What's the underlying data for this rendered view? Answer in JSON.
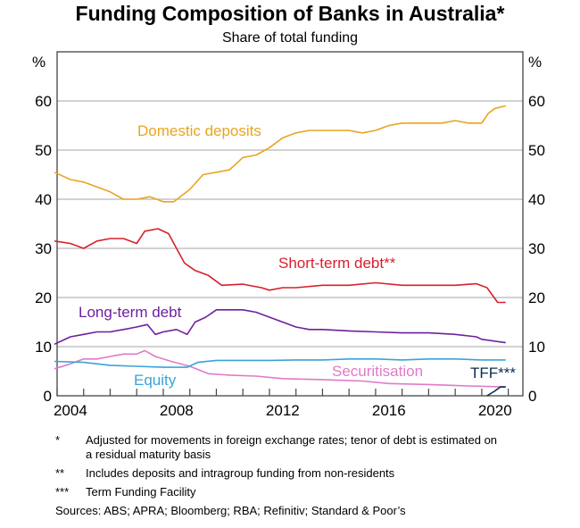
{
  "chart_data": {
    "type": "line",
    "title": "Funding Composition of Banks in Australia*",
    "subtitle": "Share of total funding",
    "ylabel_left": "%",
    "ylabel_right": "%",
    "ylim": [
      0,
      70
    ],
    "xlim": [
      2004,
      2021.55
    ],
    "yticks": [
      0,
      10,
      20,
      30,
      40,
      50,
      60
    ],
    "xtick_labels": [
      "2004",
      "2008",
      "2012",
      "2016",
      "2020"
    ],
    "grid": true,
    "series": [
      {
        "name": "Domestic deposits",
        "color": "#e8a520",
        "x": [
          2003.9,
          2004.5,
          2005.0,
          2005.5,
          2006.0,
          2006.5,
          2007.0,
          2007.5,
          2008.0,
          2008.4,
          2009.0,
          2009.5,
          2010.0,
          2010.5,
          2011.0,
          2011.5,
          2012.0,
          2012.5,
          2013.0,
          2013.5,
          2014.0,
          2014.5,
          2015.0,
          2015.5,
          2016.0,
          2016.5,
          2017.0,
          2017.5,
          2018.0,
          2018.5,
          2019.0,
          2019.5,
          2020.0,
          2020.25,
          2020.5,
          2020.9
        ],
        "y": [
          45.5,
          44,
          43.5,
          42.5,
          41.5,
          40,
          40,
          40.5,
          39.5,
          39.5,
          42,
          45,
          45.5,
          46,
          48.5,
          49,
          50.5,
          52.5,
          53.5,
          54,
          54,
          54,
          54,
          53.5,
          54,
          55,
          55.5,
          55.5,
          55.5,
          55.5,
          56,
          55.5,
          55.5,
          57.5,
          58.5,
          59
        ]
      },
      {
        "name": "Short-term debt**",
        "color": "#d7202d",
        "x": [
          2003.9,
          2004.5,
          2005.0,
          2005.5,
          2006.0,
          2006.5,
          2007.0,
          2007.3,
          2007.8,
          2008.2,
          2008.5,
          2008.8,
          2009.2,
          2009.7,
          2010.2,
          2011.0,
          2011.7,
          2012.0,
          2012.5,
          2013.0,
          2014.0,
          2015.0,
          2016.0,
          2017.0,
          2018.0,
          2019.0,
          2019.8,
          2020.2,
          2020.6,
          2020.9
        ],
        "y": [
          31.5,
          31,
          30,
          31.5,
          32,
          32,
          31,
          33.5,
          34,
          33,
          30,
          27,
          25.5,
          24.5,
          22.5,
          22.7,
          22,
          21.5,
          22,
          22,
          22.5,
          22.5,
          23,
          22.5,
          22.5,
          22.5,
          22.8,
          22,
          19,
          19
        ]
      },
      {
        "name": "Long-term debt",
        "color": "#6e1f9e",
        "x": [
          2003.9,
          2004.5,
          2005.0,
          2005.5,
          2006.0,
          2006.5,
          2007.0,
          2007.4,
          2007.7,
          2008.0,
          2008.5,
          2008.9,
          2009.2,
          2009.6,
          2010.0,
          2010.5,
          2011.0,
          2011.5,
          2012.0,
          2012.5,
          2013.0,
          2013.5,
          2014.0,
          2015.0,
          2016.0,
          2017.0,
          2018.0,
          2019.0,
          2019.8,
          2020.0,
          2020.9
        ],
        "y": [
          10.5,
          12,
          12.5,
          13,
          13,
          13.5,
          14,
          14.5,
          12.5,
          13,
          13.5,
          12.5,
          15,
          16,
          17.5,
          17.5,
          17.5,
          17,
          16,
          15,
          14,
          13.5,
          13.5,
          13.2,
          13,
          12.8,
          12.8,
          12.5,
          12,
          11.5,
          10.8
        ]
      },
      {
        "name": "Securitisation",
        "color": "#e07ac8",
        "x": [
          2003.9,
          2004.5,
          2005.0,
          2005.5,
          2006.0,
          2006.5,
          2007.0,
          2007.3,
          2007.7,
          2008.3,
          2009.0,
          2009.7,
          2010.5,
          2011.5,
          2012.5,
          2014.0,
          2015.5,
          2016.5,
          2018.0,
          2019.5,
          2020.9
        ],
        "y": [
          5.5,
          6.5,
          7.5,
          7.5,
          8,
          8.5,
          8.5,
          9.2,
          8,
          7,
          6,
          4.5,
          4.2,
          4,
          3.5,
          3.3,
          3,
          2.5,
          2.3,
          2,
          1.8
        ]
      },
      {
        "name": "Equity",
        "color": "#3aa3d9",
        "x": [
          2003.9,
          2005.0,
          2006.0,
          2007.0,
          2008.0,
          2008.9,
          2009.3,
          2010.0,
          2011.0,
          2012.0,
          2013.0,
          2014.0,
          2015.0,
          2016.0,
          2017.0,
          2018.0,
          2019.0,
          2020.0,
          2020.9
        ],
        "y": [
          7,
          6.8,
          6.2,
          6,
          5.8,
          5.8,
          6.8,
          7.2,
          7.2,
          7.2,
          7.3,
          7.3,
          7.5,
          7.5,
          7.3,
          7.5,
          7.5,
          7.3,
          7.3
        ]
      },
      {
        "name": "TFF***",
        "color": "#0d2b4b",
        "x": [
          2020.2,
          2020.5,
          2020.7,
          2020.9
        ],
        "y": [
          0,
          1,
          1.8,
          1.8
        ]
      }
    ]
  },
  "footnotes": [
    {
      "mark": "*",
      "text": "Adjusted for movements in foreign exchange rates; tenor of debt is estimated on a residual maturity basis"
    },
    {
      "mark": "**",
      "text": "Includes deposits and intragroup funding from non-residents"
    },
    {
      "mark": "***",
      "text": "Term Funding Facility"
    }
  ],
  "sources": "Sources: ABS; APRA; Bloomberg; RBA; Refinitiv; Standard & Poor’s"
}
